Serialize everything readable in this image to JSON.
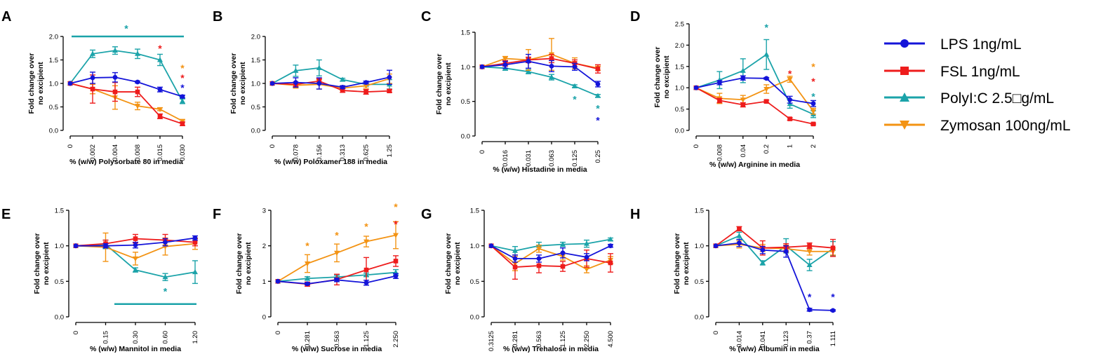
{
  "colors": {
    "LPS": "#1414d9",
    "FSL": "#ee1c1c",
    "PolyIC": "#1ba3a9",
    "Zymosan": "#f39313"
  },
  "legend": [
    {
      "series": "LPS",
      "label": "LPS 1ng/mL",
      "marker": "circle"
    },
    {
      "series": "FSL",
      "label": "FSL 1ng/mL",
      "marker": "square"
    },
    {
      "series": "PolyIC",
      "label": "PolyI:C 2.5□g/mL",
      "marker": "triangle-up"
    },
    {
      "series": "Zymosan",
      "label": "Zymosan 100ng/mL",
      "marker": "triangle-down"
    }
  ],
  "chart_data": [
    {
      "panel": "A",
      "type": "line",
      "ylabel": [
        "Fold change over",
        "no excipient"
      ],
      "xlabel": "% (w/w) Polysorbate 80 in media",
      "categories": [
        "0",
        "0.002",
        "0.004",
        "0.008",
        "0.015",
        "0.030"
      ],
      "ylim": [
        0,
        2.0
      ],
      "yticks": [
        0.0,
        0.5,
        1.0,
        1.5,
        2.0
      ],
      "ytick_labels": [
        "0.0",
        "0.5",
        "1.0",
        "1.5",
        "2.0"
      ],
      "series": [
        {
          "name": "PolyIC",
          "values": [
            1.0,
            1.63,
            1.7,
            1.63,
            1.5,
            0.62
          ],
          "errors": [
            0,
            0.08,
            0.08,
            0.1,
            0.12,
            0.05
          ]
        },
        {
          "name": "Zymosan",
          "values": [
            1.0,
            0.88,
            0.7,
            0.52,
            0.45,
            0.2
          ],
          "errors": [
            0,
            0.1,
            0.25,
            0.08,
            0.03,
            0.02
          ]
        },
        {
          "name": "FSL",
          "values": [
            1.0,
            0.88,
            0.82,
            0.82,
            0.3,
            0.14
          ],
          "errors": [
            0,
            0.3,
            0.2,
            0.1,
            0.05,
            0.04
          ]
        },
        {
          "name": "LPS",
          "values": [
            1.0,
            1.12,
            1.13,
            1.03,
            0.87,
            0.72
          ],
          "errors": [
            0,
            0.12,
            0.1,
            0.02,
            0.05,
            0.03
          ]
        }
      ],
      "annotations": [
        {
          "text": "*",
          "series": "PolyIC",
          "at": 2.5,
          "y": 2.17
        },
        {
          "text": "*",
          "series": "FSL",
          "at": 4.0,
          "y": 1.75
        },
        {
          "text": "*",
          "series": "Zymosan",
          "at": 5.0,
          "y": 1.33
        },
        {
          "text": "*",
          "series": "FSL",
          "at": 5.0,
          "y": 1.12
        },
        {
          "text": "*",
          "series": "LPS",
          "at": 5.0,
          "y": 0.91
        }
      ],
      "brackets": [
        {
          "series": "PolyIC",
          "from": 1,
          "to": 5,
          "y": 2.0
        }
      ]
    },
    {
      "panel": "B",
      "type": "line",
      "ylabel": [
        "Fold change over",
        "no excipient"
      ],
      "xlabel": "% (w/w) Poloxamer 188 in media",
      "categories": [
        "0",
        "0.078",
        "0.156",
        "0.313",
        "0.625",
        "1.25"
      ],
      "ylim": [
        0,
        2.0
      ],
      "yticks": [
        0.0,
        0.5,
        1.0,
        1.5,
        2.0
      ],
      "ytick_labels": [
        "0.0",
        "0.5",
        "1.0",
        "1.5",
        "2.0"
      ],
      "series": [
        {
          "name": "PolyIC",
          "values": [
            1.0,
            1.27,
            1.33,
            1.08,
            0.98,
            0.98
          ],
          "errors": [
            0,
            0.12,
            0.17,
            0.03,
            0.04,
            0.1
          ]
        },
        {
          "name": "Zymosan",
          "values": [
            1.0,
            0.96,
            0.98,
            0.9,
            0.95,
            1.1
          ],
          "errors": [
            0,
            0.06,
            0.1,
            0.05,
            0.05,
            0.1
          ]
        },
        {
          "name": "FSL",
          "values": [
            1.0,
            0.98,
            1.05,
            0.85,
            0.82,
            0.84
          ],
          "errors": [
            0,
            0.05,
            0.05,
            0.04,
            0.05,
            0.03
          ]
        },
        {
          "name": "LPS",
          "values": [
            1.0,
            1.02,
            1.0,
            0.92,
            1.02,
            1.13
          ],
          "errors": [
            0,
            0.1,
            0.12,
            0.03,
            0.03,
            0.15
          ]
        }
      ],
      "annotations": [],
      "brackets": []
    },
    {
      "panel": "C",
      "type": "line",
      "ylabel": [
        "Fold change over",
        "no excipient"
      ],
      "xlabel": "% (w/w) Histadine in media",
      "categories": [
        "0",
        "0.016",
        "0.031",
        "0.063",
        "0.125",
        "0.25"
      ],
      "ylim": [
        0,
        1.5
      ],
      "yticks": [
        0.0,
        0.5,
        1.0,
        1.5
      ],
      "ytick_labels": [
        "0.0",
        "0.5",
        "1.0",
        "1.5"
      ],
      "series": [
        {
          "name": "PolyIC",
          "values": [
            1.0,
            0.98,
            0.93,
            0.85,
            0.72,
            0.58
          ],
          "errors": [
            0,
            0.03,
            0.03,
            0.04,
            0.02,
            0.02
          ]
        },
        {
          "name": "Zymosan",
          "values": [
            1.0,
            1.12,
            1.1,
            1.18,
            1.05,
            0.98
          ],
          "errors": [
            0,
            0.03,
            0.15,
            0.23,
            0.08,
            0.03
          ]
        },
        {
          "name": "FSL",
          "values": [
            1.0,
            1.05,
            1.1,
            1.12,
            1.05,
            0.97
          ],
          "errors": [
            0,
            0.04,
            0.04,
            0.06,
            0.05,
            0.06
          ]
        },
        {
          "name": "LPS",
          "values": [
            1.0,
            1.03,
            1.08,
            1.01,
            1.0,
            0.75
          ],
          "errors": [
            0,
            0.05,
            0.1,
            0.08,
            0.05,
            0.04
          ]
        }
      ],
      "annotations": [
        {
          "text": "*",
          "series": "PolyIC",
          "at": 4.0,
          "y": 0.53
        },
        {
          "text": "*",
          "series": "PolyIC",
          "at": 5.0,
          "y": 0.4
        },
        {
          "text": "*",
          "series": "LPS",
          "at": 5.0,
          "y": 0.23
        }
      ],
      "brackets": []
    },
    {
      "panel": "D",
      "type": "line",
      "ylabel": [
        "Fold change over",
        "no excipient"
      ],
      "xlabel": "% (w/w) Arginine in media",
      "categories": [
        "0",
        "0.008",
        "0.04",
        "0.2",
        "1",
        "2"
      ],
      "ylim": [
        0,
        2.5
      ],
      "yticks": [
        0.0,
        0.5,
        1.0,
        1.5,
        2.0,
        2.5
      ],
      "ytick_labels": [
        "0.0",
        "0.5",
        "1.0",
        "1.5",
        "2.0",
        "2.5"
      ],
      "series": [
        {
          "name": "PolyIC",
          "values": [
            1.0,
            1.18,
            1.4,
            1.78,
            0.62,
            0.38
          ],
          "errors": [
            0,
            0.2,
            0.28,
            0.35,
            0.1,
            0.08
          ]
        },
        {
          "name": "Zymosan",
          "values": [
            1.0,
            0.75,
            0.72,
            0.97,
            1.2,
            0.45
          ],
          "errors": [
            0,
            0.12,
            0.1,
            0.1,
            0.07,
            0.07
          ]
        },
        {
          "name": "FSL",
          "values": [
            1.0,
            0.7,
            0.6,
            0.68,
            0.27,
            0.15
          ],
          "errors": [
            0,
            0.05,
            0.05,
            0.03,
            0.03,
            0.02
          ]
        },
        {
          "name": "LPS",
          "values": [
            1.0,
            1.12,
            1.23,
            1.22,
            0.72,
            0.63
          ],
          "errors": [
            0,
            0.05,
            0.05,
            0.02,
            0.08,
            0.07
          ]
        }
      ],
      "annotations": [
        {
          "text": "*",
          "series": "PolyIC",
          "at": 3.0,
          "y": 2.42
        },
        {
          "text": "*",
          "series": "FSL",
          "at": 4.0,
          "y": 1.33
        },
        {
          "text": "*",
          "series": "Zymosan",
          "at": 5.0,
          "y": 1.5
        },
        {
          "text": "*",
          "series": "FSL",
          "at": 5.0,
          "y": 1.15
        },
        {
          "text": "*",
          "series": "PolyIC",
          "at": 5.0,
          "y": 0.8
        }
      ],
      "brackets": []
    },
    {
      "panel": "E",
      "type": "line",
      "ylabel": [
        "Fold change over",
        "no excipient"
      ],
      "xlabel": "% (w/w) Mannitol in media",
      "categories": [
        "0",
        "0.15",
        "0.30",
        "0.60",
        "1.20"
      ],
      "ylim": [
        0,
        1.5
      ],
      "yticks": [
        0.0,
        0.5,
        1.0,
        1.5
      ],
      "ytick_labels": [
        "0.0",
        "0.5",
        "1.0",
        "1.5"
      ],
      "series": [
        {
          "name": "PolyIC",
          "values": [
            1.0,
            1.02,
            0.66,
            0.56,
            0.63
          ],
          "errors": [
            0,
            0.06,
            0.03,
            0.05,
            0.16
          ]
        },
        {
          "name": "Zymosan",
          "values": [
            1.0,
            0.98,
            0.82,
            0.99,
            1.03
          ],
          "errors": [
            0,
            0.2,
            0.09,
            0.12,
            0.08
          ]
        },
        {
          "name": "FSL",
          "values": [
            1.0,
            1.03,
            1.1,
            1.08,
            1.05
          ],
          "errors": [
            0,
            0.05,
            0.06,
            0.08,
            0.05
          ]
        },
        {
          "name": "LPS",
          "values": [
            1.0,
            1.0,
            1.01,
            1.05,
            1.11
          ],
          "errors": [
            0,
            0.03,
            0.04,
            0.05,
            0.03
          ]
        }
      ],
      "annotations": [
        {
          "text": "*",
          "series": "PolyIC",
          "at": 3.0,
          "y": 0.36
        }
      ],
      "brackets": [
        {
          "series": "PolyIC",
          "from": 2,
          "to": 4,
          "y": 0.18
        }
      ]
    },
    {
      "panel": "F",
      "type": "line",
      "ylabel": [
        "Fold change over",
        "no excipient"
      ],
      "xlabel": "% (w/w) Sucrose in media",
      "categories": [
        "0",
        "0.281",
        "0.563",
        "1.125",
        "2.250"
      ],
      "ylim": [
        0,
        3
      ],
      "yticks": [
        0,
        1,
        2,
        3
      ],
      "ytick_labels": [
        "0",
        "1",
        "2",
        "3"
      ],
      "series": [
        {
          "name": "PolyIC",
          "values": [
            1.0,
            1.08,
            1.12,
            1.18,
            1.25
          ],
          "errors": [
            0,
            0.05,
            0.05,
            0.05,
            0.08
          ]
        },
        {
          "name": "Zymosan",
          "values": [
            1.0,
            1.5,
            1.8,
            2.12,
            2.3
          ],
          "errors": [
            0,
            0.25,
            0.25,
            0.15,
            0.38
          ]
        },
        {
          "name": "FSL",
          "values": [
            1.0,
            0.92,
            1.05,
            1.32,
            1.57
          ],
          "errors": [
            0,
            0.06,
            0.15,
            0.35,
            0.15
          ]
        },
        {
          "name": "LPS",
          "values": [
            1.0,
            0.93,
            1.04,
            0.96,
            1.15
          ],
          "errors": [
            0,
            0.03,
            0.05,
            0.07,
            0.07
          ]
        }
      ],
      "annotations": [
        {
          "text": "*",
          "series": "Zymosan",
          "at": 1.0,
          "y": 2.0
        },
        {
          "text": "*",
          "series": "Zymosan",
          "at": 2.0,
          "y": 2.3
        },
        {
          "text": "*",
          "series": "Zymosan",
          "at": 3.0,
          "y": 2.55
        },
        {
          "text": "*",
          "series": "Zymosan",
          "at": 4.0,
          "y": 3.1
        },
        {
          "text": "*",
          "series": "FSL",
          "at": 4.0,
          "y": 2.62
        }
      ],
      "brackets": []
    },
    {
      "panel": "G",
      "type": "line",
      "ylabel": [
        "Fold change over",
        "no excipient"
      ],
      "xlabel": "% (w/w) Trehalose in media",
      "categories": [
        "0.3125",
        "0.281",
        "0.563",
        "1.125",
        "2.250",
        "4.500"
      ],
      "ylim": [
        0,
        1.5
      ],
      "yticks": [
        0.0,
        0.5,
        1.0,
        1.5
      ],
      "ytick_labels": [
        "0.0",
        "0.5",
        "1.0",
        "1.5"
      ],
      "series": [
        {
          "name": "PolyIC",
          "values": [
            1.0,
            0.93,
            1.0,
            1.02,
            1.03,
            1.09
          ],
          "errors": [
            0,
            0.06,
            0.05,
            0.03,
            0.05,
            0.02
          ]
        },
        {
          "name": "Zymosan",
          "values": [
            1.0,
            0.75,
            0.96,
            0.85,
            0.67,
            0.8
          ],
          "errors": [
            0,
            0.1,
            0.05,
            0.05,
            0.05,
            0.05
          ]
        },
        {
          "name": "FSL",
          "values": [
            1.0,
            0.7,
            0.72,
            0.71,
            0.82,
            0.76
          ],
          "errors": [
            0,
            0.17,
            0.1,
            0.07,
            0.12,
            0.13
          ]
        },
        {
          "name": "LPS",
          "values": [
            1.0,
            0.82,
            0.82,
            0.9,
            0.84,
            1.0
          ],
          "errors": [
            0,
            0.05,
            0.05,
            0.07,
            0.05,
            0.02
          ]
        }
      ],
      "annotations": [],
      "brackets": []
    },
    {
      "panel": "H",
      "type": "line",
      "ylabel": [
        "Fold change over",
        "no excipient"
      ],
      "xlabel": "% (w/w) Albumin in media",
      "categories": [
        "0",
        "0.014",
        "0.041",
        "0.123",
        "0.37",
        "1.111"
      ],
      "ylim": [
        0,
        1.5
      ],
      "yticks": [
        0.0,
        0.5,
        1.0,
        1.5
      ],
      "ytick_labels": [
        "0.0",
        "0.5",
        "1.0",
        "1.5"
      ],
      "series": [
        {
          "name": "PolyIC",
          "values": [
            1.0,
            1.14,
            0.76,
            1.0,
            0.73,
            0.96
          ],
          "errors": [
            0,
            0.05,
            0.03,
            0.1,
            0.08,
            0.1
          ]
        },
        {
          "name": "Zymosan",
          "values": [
            1.0,
            1.02,
            0.97,
            0.96,
            0.92,
            0.92
          ],
          "errors": [
            0,
            0.05,
            0.05,
            0.05,
            0.05,
            0.05
          ]
        },
        {
          "name": "FSL",
          "values": [
            1.0,
            1.24,
            0.97,
            0.98,
            1.0,
            0.97
          ],
          "errors": [
            0,
            0.03,
            0.1,
            0.05,
            0.04,
            0.12
          ]
        },
        {
          "name": "LPS",
          "values": [
            1.0,
            1.04,
            0.94,
            0.92,
            0.1,
            0.09
          ],
          "errors": [
            0,
            0.05,
            0.05,
            0.08,
            0.02,
            0.01
          ]
        }
      ],
      "annotations": [
        {
          "text": "*",
          "series": "LPS",
          "at": 4.0,
          "y": 0.28
        },
        {
          "text": "*",
          "series": "LPS",
          "at": 5.0,
          "y": 0.28
        }
      ],
      "brackets": []
    }
  ]
}
